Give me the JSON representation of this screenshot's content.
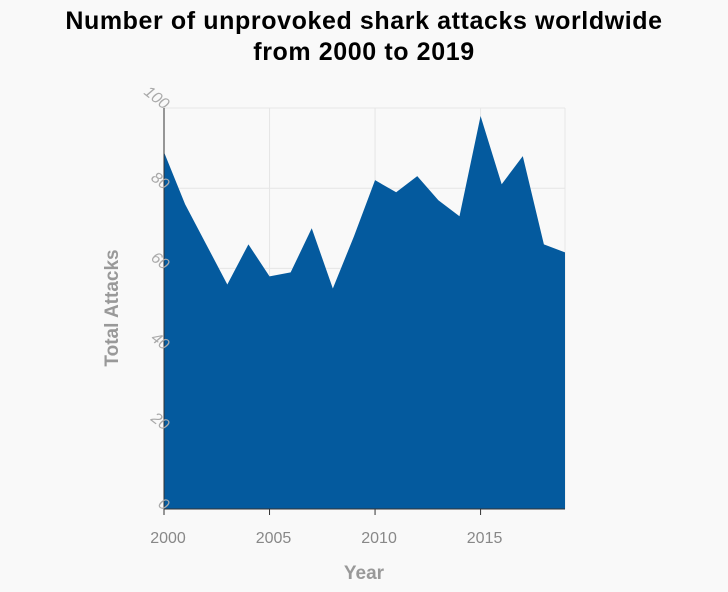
{
  "chart_data": {
    "type": "area",
    "title_line1": "Number of unprovoked shark attacks worldwide",
    "title_line2": "from 2000 to 2019",
    "xlabel": "Year",
    "ylabel": "Total Attacks",
    "xlim": [
      2000,
      2019
    ],
    "ylim": [
      0,
      100
    ],
    "x_ticks": [
      "2000",
      "2005",
      "2010",
      "2015"
    ],
    "y_ticks": [
      "0",
      "20",
      "40",
      "60",
      "80",
      "100"
    ],
    "grid": true,
    "color": "#045a9e",
    "x": [
      2000,
      2001,
      2002,
      2003,
      2004,
      2005,
      2006,
      2007,
      2008,
      2009,
      2010,
      2011,
      2012,
      2013,
      2014,
      2015,
      2016,
      2017,
      2018,
      2019
    ],
    "values": [
      89,
      76,
      66,
      56,
      66,
      58,
      59,
      70,
      55,
      68,
      82,
      79,
      83,
      77,
      73,
      98,
      81,
      88,
      66,
      64
    ]
  }
}
